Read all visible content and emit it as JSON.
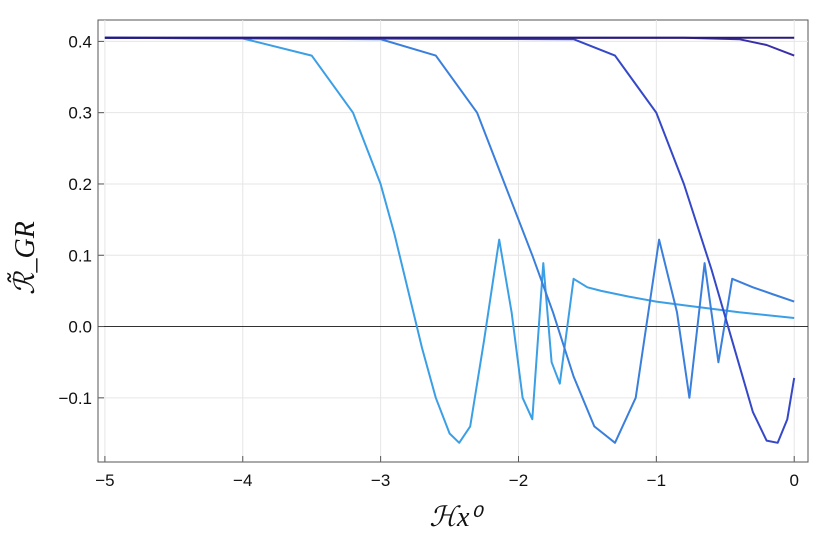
{
  "chart_data": {
    "type": "line",
    "title": "",
    "xlabel": "ℋx⁰",
    "ylabel": "ℛ̃_GR",
    "xlim": [
      -5.05,
      0.1
    ],
    "ylim": [
      -0.19,
      0.43
    ],
    "xticks": [
      -5,
      -4,
      -3,
      -2,
      -1,
      0
    ],
    "xtick_labels": [
      "−5",
      "−4",
      "−3",
      "−2",
      "−1",
      "0"
    ],
    "yticks": [
      -0.1,
      0.0,
      0.1,
      0.2,
      0.3,
      0.4
    ],
    "ytick_labels": [
      "−0.1",
      "0.0",
      "0.1",
      "0.2",
      "0.3",
      "0.4"
    ],
    "grid": true,
    "zero_line": true,
    "series": [
      {
        "color": "#3b9fe6",
        "x": [
          -5.0,
          -4.0,
          -3.5,
          -3.2,
          -3.0,
          -2.9,
          -2.8,
          -2.7,
          -2.6,
          -2.5,
          -2.43,
          -2.35,
          -2.25,
          -2.14,
          -2.05,
          -1.97,
          -1.9,
          -1.82,
          -1.76,
          -1.7,
          -1.6,
          -1.5,
          -1.4,
          -1.2,
          -1.0,
          -0.8,
          -0.6,
          -0.4,
          -0.2,
          0.0
        ],
        "y": [
          0.405,
          0.404,
          0.38,
          0.3,
          0.2,
          0.13,
          0.05,
          -0.03,
          -0.1,
          -0.15,
          -0.163,
          -0.14,
          -0.02,
          0.122,
          0.02,
          -0.1,
          -0.13,
          0.089,
          -0.05,
          -0.08,
          0.067,
          0.055,
          0.05,
          0.042,
          0.035,
          0.03,
          0.025,
          0.02,
          0.016,
          0.012
        ]
      },
      {
        "color": "#3a7fdc",
        "x": [
          -5.0,
          -3.0,
          -2.6,
          -2.3,
          -2.1,
          -1.9,
          -1.75,
          -1.6,
          -1.45,
          -1.3,
          -1.15,
          -0.98,
          -0.85,
          -0.76,
          -0.65,
          -0.55,
          -0.45,
          -0.3,
          -0.15,
          0.0
        ],
        "y": [
          0.405,
          0.403,
          0.38,
          0.3,
          0.2,
          0.1,
          0.02,
          -0.07,
          -0.14,
          -0.163,
          -0.1,
          0.122,
          0.02,
          -0.1,
          0.089,
          -0.05,
          0.067,
          0.055,
          0.045,
          0.035
        ]
      },
      {
        "color": "#3548c8",
        "x": [
          -5.0,
          -1.6,
          -1.3,
          -1.0,
          -0.8,
          -0.6,
          -0.45,
          -0.3,
          -0.2,
          -0.12,
          -0.05,
          0.0
        ],
        "y": [
          0.405,
          0.403,
          0.38,
          0.3,
          0.2,
          0.08,
          -0.02,
          -0.12,
          -0.16,
          -0.163,
          -0.13,
          -0.072
        ]
      },
      {
        "color": "#3a2fa8",
        "x": [
          -5.0,
          -0.8,
          -0.4,
          -0.2,
          0.0
        ],
        "y": [
          0.405,
          0.405,
          0.403,
          0.395,
          0.38
        ]
      },
      {
        "color": "#2a1a78",
        "x": [
          -5.0,
          -1.0,
          0.0
        ],
        "y": [
          0.405,
          0.405,
          0.405
        ]
      }
    ]
  }
}
